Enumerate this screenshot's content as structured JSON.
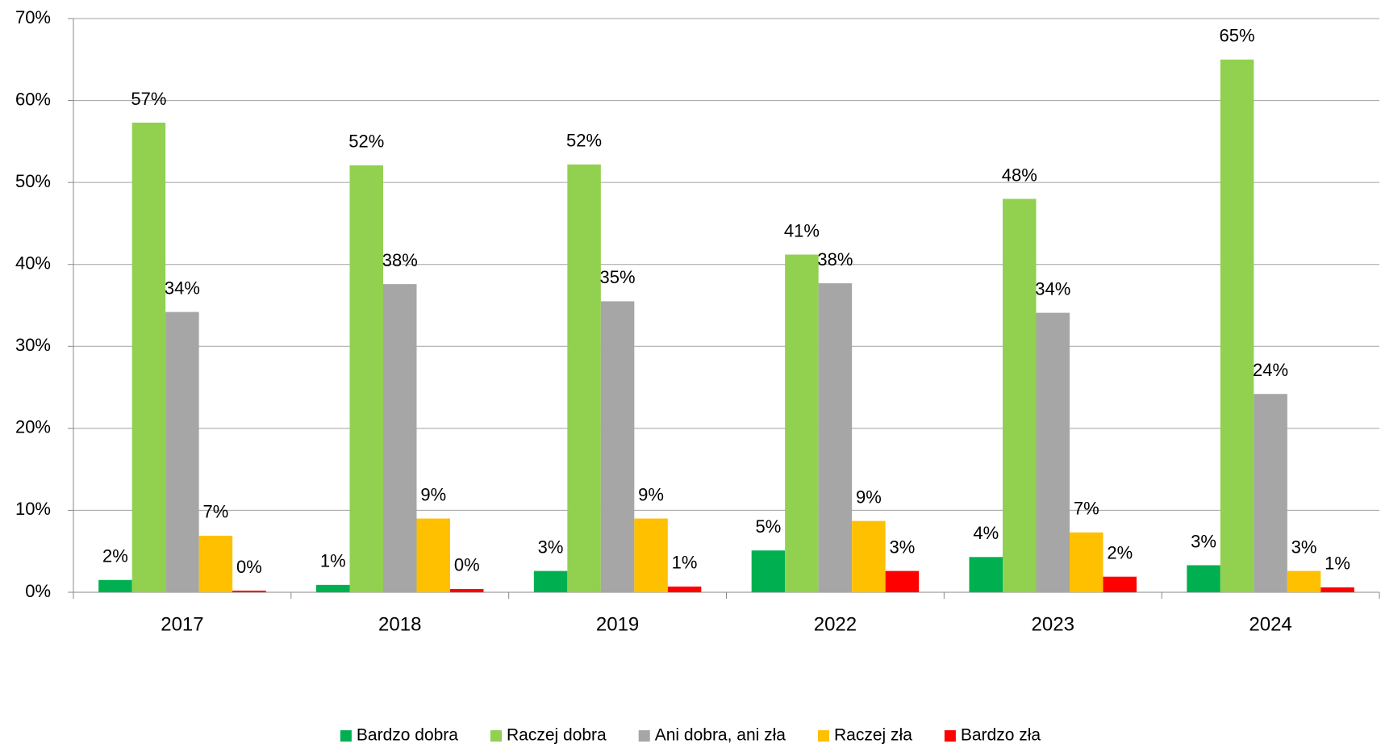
{
  "chart_data": {
    "type": "bar",
    "categories": [
      "2017",
      "2018",
      "2019",
      "2022",
      "2023",
      "2024"
    ],
    "series": [
      {
        "name": "Bardzo dobra",
        "color": "#00b050",
        "values": [
          1.5,
          0.9,
          2.6,
          5.1,
          4.3,
          3.3
        ],
        "value_labels": [
          "2%",
          "1%",
          "3%",
          "5%",
          "4%",
          "3%"
        ]
      },
      {
        "name": "Raczej dobra",
        "color": "#92d050",
        "values": [
          57.3,
          52.1,
          52.2,
          41.2,
          48.0,
          65.0
        ],
        "value_labels": [
          "57%",
          "52%",
          "52%",
          "41%",
          "48%",
          "65%"
        ]
      },
      {
        "name": "Ani dobra, ani zła",
        "color": "#a6a6a6",
        "values": [
          34.2,
          37.6,
          35.5,
          37.7,
          34.1,
          24.2
        ],
        "value_labels": [
          "34%",
          "38%",
          "35%",
          "38%",
          "34%",
          "24%"
        ]
      },
      {
        "name": "Raczej zła",
        "color": "#ffc000",
        "values": [
          6.9,
          9.0,
          9.0,
          8.7,
          7.3,
          2.6
        ],
        "value_labels": [
          "7%",
          "9%",
          "9%",
          "9%",
          "7%",
          "3%"
        ]
      },
      {
        "name": "Bardzo zła",
        "color": "#ff0000",
        "values": [
          0.2,
          0.4,
          0.7,
          2.6,
          1.9,
          0.6
        ],
        "value_labels": [
          "0%",
          "0%",
          "1%",
          "3%",
          "2%",
          "1%"
        ]
      }
    ],
    "ylim": [
      0,
      70
    ],
    "yticks": [
      {
        "value": 0,
        "label": "0%"
      },
      {
        "value": 10,
        "label": "10%"
      },
      {
        "value": 20,
        "label": "20%"
      },
      {
        "value": 30,
        "label": "30%"
      },
      {
        "value": 40,
        "label": "40%"
      },
      {
        "value": 50,
        "label": "50%"
      },
      {
        "value": 60,
        "label": "60%"
      },
      {
        "value": 70,
        "label": "70%"
      }
    ],
    "grid": true,
    "legend": "bottom"
  }
}
